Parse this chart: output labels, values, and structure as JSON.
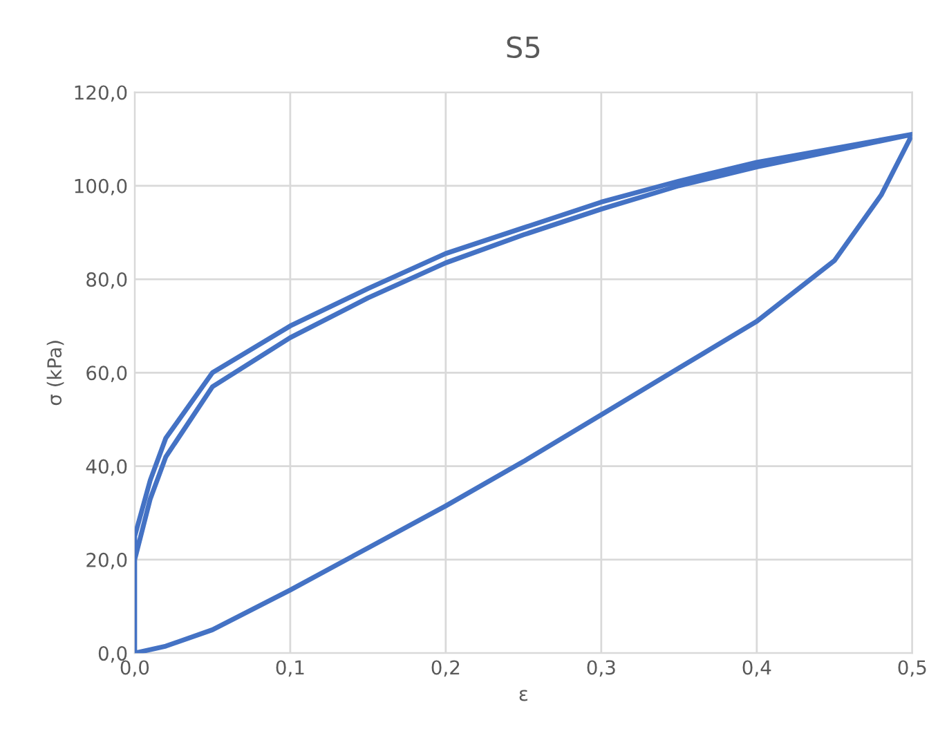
{
  "chart_data": {
    "type": "line",
    "title": "S5",
    "xlabel": "ε",
    "ylabel": "σ (kPa)",
    "series": [
      {
        "color": "#4472c4",
        "x": [
          0,
          0,
          0.01,
          0.02,
          0.05,
          0.1,
          0.15,
          0.2,
          0.25,
          0.3,
          0.35,
          0.4,
          0.45,
          0.5,
          0.48,
          0.45,
          0.4,
          0.35,
          0.3,
          0.25,
          0.2,
          0.15,
          0.1,
          0.05,
          0.02,
          0,
          0,
          0.01,
          0.02,
          0.05,
          0.1,
          0.15,
          0.2,
          0.25,
          0.3,
          0.35,
          0.4,
          0.45,
          0.5
        ],
        "values": [
          0,
          20,
          33,
          42,
          57,
          67.5,
          76,
          83.5,
          89.5,
          95,
          100,
          104,
          107.5,
          111,
          98,
          84,
          71,
          61,
          51,
          41,
          31.5,
          22.5,
          13.5,
          5,
          1.5,
          0,
          25,
          37,
          46,
          60,
          70,
          78,
          85.5,
          91,
          96.5,
          101,
          105,
          108,
          111
        ]
      }
    ],
    "xlim": [
      0,
      0.5
    ],
    "xticks": [
      {
        "value": 0,
        "label": "0,0"
      },
      {
        "value": 0.1,
        "label": "0,1"
      },
      {
        "value": 0.2,
        "label": "0,2"
      },
      {
        "value": 0.3,
        "label": "0,3"
      },
      {
        "value": 0.4,
        "label": "0,4"
      },
      {
        "value": 0.5,
        "label": "0,5"
      }
    ],
    "ylim": [
      0,
      120
    ],
    "yticks": [
      {
        "value": 0,
        "label": "0,0"
      },
      {
        "value": 20,
        "label": "20,0"
      },
      {
        "value": 40,
        "label": "40,0"
      },
      {
        "value": 60,
        "label": "60,0"
      },
      {
        "value": 80,
        "label": "80,0"
      },
      {
        "value": 100,
        "label": "100,0"
      },
      {
        "value": 120,
        "label": "120,0"
      }
    ],
    "grid": true,
    "marker": "none",
    "line_style": "solid"
  }
}
